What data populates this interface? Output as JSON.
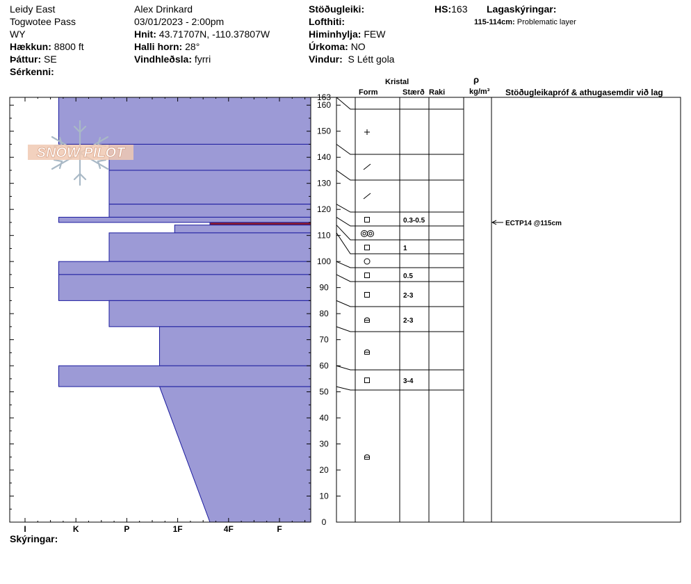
{
  "header": {
    "location": "Leidy East",
    "area": "Togwotee Pass",
    "state": "WY",
    "elevation_label": "Hækkun:",
    "elevation_value": "8800 ft",
    "aspect_label": "Þáttur:",
    "aspect_value": "SE",
    "features_label": "Sérkenni:",
    "observer": "Alex Drinkard",
    "datetime": "03/01/2023 - 2:00pm",
    "coords_label": "Hnit:",
    "coords_value": "43.71707N, -110.37807W",
    "slope_label": "Halli horn:",
    "slope_value": "28°",
    "wind_loading_label": "Vindhleðsla:",
    "wind_loading_value": "fyrri",
    "stability_label": "Stöðugleiki:",
    "air_temp_label": "Lofthiti:",
    "sky_label": "Himinhylja:",
    "sky_value": "FEW",
    "precip_label": "Úrkoma:",
    "precip_value": "NO",
    "wind_label": "Vindur:",
    "wind_value": "S Létt gola",
    "hs_label": "HS:",
    "hs_value": "163",
    "legend_label": "Lagaskýringar:",
    "legend_range": "115-114cm:",
    "legend_text": "Problematic layer"
  },
  "columns": {
    "crystal": "Kristal",
    "form": "Form",
    "size": "Stærð",
    "moisture": "Raki",
    "rho": "ρ",
    "density_unit": "kg/m³",
    "tests": "Stöðugleikapróf & athugasemdir við lag"
  },
  "footer": {
    "notes_label": "Skýringar:"
  },
  "logo_text": "SNOW PILOT",
  "colors": {
    "layer_fill": "#9c9ad6",
    "layer_stroke": "#1a1a9e",
    "problem_layer": "#8b1a2e"
  },
  "chart_data": {
    "type": "hardness-profile",
    "y_unit": "cm",
    "ylim": [
      0,
      163
    ],
    "y_ticks": [
      0,
      10,
      20,
      30,
      40,
      50,
      60,
      70,
      80,
      90,
      100,
      110,
      120,
      130,
      140,
      150,
      160
    ],
    "top_label": "163",
    "hardness_ticks": [
      "I",
      "K",
      "P",
      "1F",
      "4F",
      "F"
    ],
    "layers": [
      {
        "top": 163,
        "bottom": 145,
        "hardness": 1,
        "form": "plus",
        "size": ""
      },
      {
        "top": 145,
        "bottom": 135,
        "hardness": 2,
        "form": "slash",
        "size": ""
      },
      {
        "top": 135,
        "bottom": 122,
        "hardness": 2,
        "form": "slash",
        "size": ""
      },
      {
        "top": 122,
        "bottom": 117,
        "hardness": 2,
        "form": "square",
        "size": "0.3-0.5"
      },
      {
        "top": 117,
        "bottom": 115,
        "hardness": 1,
        "form": "double-circle",
        "size": ""
      },
      {
        "top": 115,
        "bottom": 114,
        "hardness": 4,
        "form": "",
        "size": ""
      },
      {
        "top": 114,
        "bottom": 111,
        "hardness": 3.3,
        "form": "square",
        "size": "1"
      },
      {
        "top": 111,
        "bottom": 100,
        "hardness": 2,
        "form": "circle",
        "size": ""
      },
      {
        "top": 100,
        "bottom": 95,
        "hardness": 1,
        "form": "square",
        "size": "0.5"
      },
      {
        "top": 95,
        "bottom": 85,
        "hardness": 1,
        "form": "square",
        "size": "2-3"
      },
      {
        "top": 85,
        "bottom": 75,
        "hardness": 2,
        "form": "rounded-square",
        "size": "2-3"
      },
      {
        "top": 75,
        "bottom": 60,
        "hardness": 3,
        "form": "rounded-square",
        "size": ""
      },
      {
        "top": 60,
        "bottom": 52,
        "hardness": 1,
        "form": "square",
        "size": "3-4"
      },
      {
        "top": 52,
        "bottom": 0,
        "hardness_top": 3,
        "hardness_bottom": 4,
        "form": "rounded-square",
        "size": ""
      }
    ],
    "tests": [
      {
        "height": 115,
        "text": "ECTP14 @115cm"
      }
    ]
  }
}
